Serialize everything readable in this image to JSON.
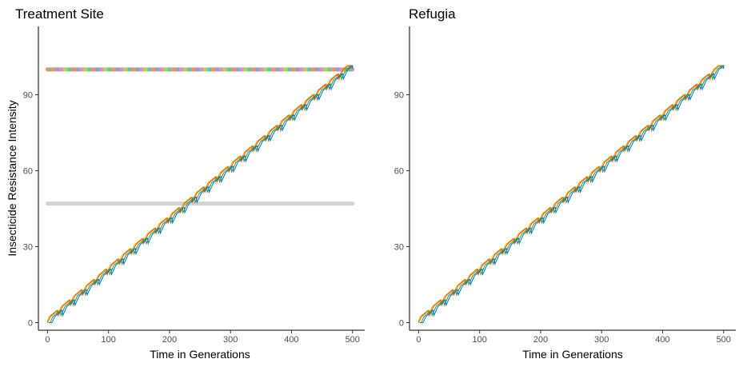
{
  "figure": {
    "shared_y_label": "Insecticide Resistance Intensity"
  },
  "chart_data": [
    {
      "type": "line",
      "title": "Treatment Site",
      "xlabel": "Time in Generations",
      "ylabel": "Insecticide Resistance Intensity",
      "xlim": [
        -15,
        520
      ],
      "ylim": [
        -3,
        117
      ],
      "x_ticks": [
        0,
        100,
        200,
        300,
        400,
        500
      ],
      "y_ticks": [
        0,
        30,
        60,
        90
      ],
      "grid": false,
      "legend": "none",
      "reference_lines": [
        {
          "y": 100,
          "x": [
            0,
            500
          ],
          "style": "dashed-multicolor",
          "colors": [
            "#66C2A5",
            "#FC8D62",
            "#8DA0CB",
            "#E78AC3",
            "#A6D854"
          ]
        },
        {
          "y": 47,
          "x": [
            0,
            500
          ],
          "style": "solid",
          "colors": [
            "#d3d3d3"
          ]
        }
      ],
      "series": [
        {
          "color": "#E69F00",
          "start": 0,
          "end": 500,
          "y_start": 0,
          "y_end": 101.5,
          "step_period": 20,
          "x_shift": -4
        },
        {
          "color": "#D55E00",
          "start": 0,
          "end": 500,
          "y_start": 0,
          "y_end": 101.5,
          "step_period": 20,
          "x_shift": -2
        },
        {
          "color": "#2E8B57",
          "start": 0,
          "end": 500,
          "y_start": 0,
          "y_end": 101.5,
          "step_period": 20,
          "x_shift": 2
        },
        {
          "color": "#0072B2",
          "start": 0,
          "end": 500,
          "y_start": 0,
          "y_end": 101.5,
          "step_period": 20,
          "x_shift": 5
        }
      ]
    },
    {
      "type": "line",
      "title": "Refugia",
      "xlabel": "Time in Generations",
      "ylabel": "",
      "xlim": [
        -15,
        520
      ],
      "ylim": [
        -3,
        117
      ],
      "x_ticks": [
        0,
        100,
        200,
        300,
        400,
        500
      ],
      "y_ticks": [
        0,
        30,
        60,
        90
      ],
      "grid": false,
      "legend": "none",
      "reference_lines": [],
      "series": [
        {
          "color": "#E69F00",
          "start": 0,
          "end": 500,
          "y_start": 0,
          "y_end": 101.5,
          "step_period": 20,
          "x_shift": -4
        },
        {
          "color": "#D55E00",
          "start": 0,
          "end": 500,
          "y_start": 0,
          "y_end": 101.5,
          "step_period": 20,
          "x_shift": -2
        },
        {
          "color": "#2E8B57",
          "start": 0,
          "end": 500,
          "y_start": 0,
          "y_end": 101.5,
          "step_period": 20,
          "x_shift": 2
        },
        {
          "color": "#0072B2",
          "start": 0,
          "end": 500,
          "y_start": 0,
          "y_end": 101.5,
          "step_period": 20,
          "x_shift": 5
        }
      ]
    }
  ]
}
